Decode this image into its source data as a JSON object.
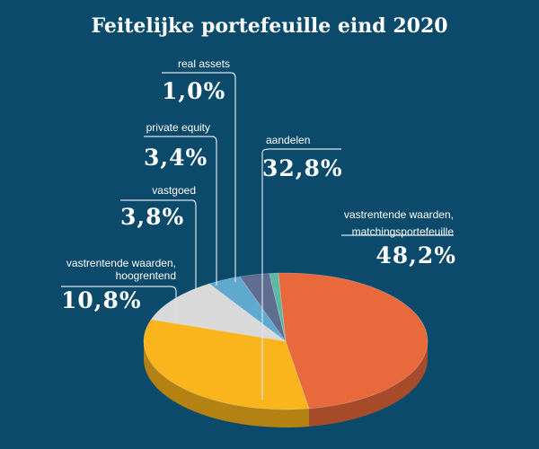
{
  "page": {
    "title": "Feitelijke portefeuille eind 2020"
  },
  "chart_data": {
    "type": "pie",
    "title": "Feitelijke portefeuille eind 2020",
    "unit": "%",
    "slices": [
      {
        "label": "vastrentende waarden, matchingsportefeuille",
        "label_lines": [
          "vastrentende waarden,",
          "matchingsportefeuille"
        ],
        "value": 48.2,
        "value_text": "48,2%",
        "color": "#e8693c"
      },
      {
        "label": "aandelen",
        "label_lines": [
          "aandelen"
        ],
        "value": 32.8,
        "value_text": "32,8%",
        "color": "#f9b51b"
      },
      {
        "label": "vastrentende waarden, hoogrentend",
        "label_lines": [
          "vastrentende waarden,",
          "hoogrentend"
        ],
        "value": 10.8,
        "value_text": "10,8%",
        "color": "#d9d9d9"
      },
      {
        "label": "vastgoed",
        "label_lines": [
          "vastgoed"
        ],
        "value": 3.8,
        "value_text": "3,8%",
        "color": "#5fa9cf"
      },
      {
        "label": "private equity",
        "label_lines": [
          "private equity"
        ],
        "value": 3.4,
        "value_text": "3,4%",
        "color": "#5f6d91"
      },
      {
        "label": "real assets",
        "label_lines": [
          "real assets"
        ],
        "value": 1.0,
        "value_text": "1,0%",
        "color": "#5fb7a6"
      }
    ]
  }
}
